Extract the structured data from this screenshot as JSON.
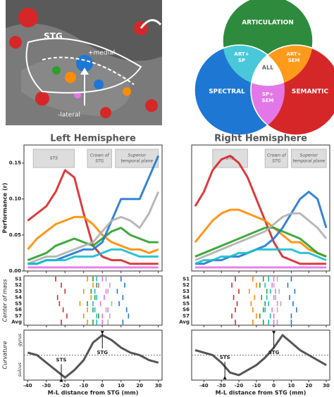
{
  "brain": {
    "stg": "STG",
    "medial": "+medial",
    "lateral": "-lateral"
  },
  "venn": {
    "articulation": "ARTICULATION",
    "spectral": "SPECTRAL",
    "semantic": "SEMANTIC",
    "art_sp": [
      "ART+",
      "SP"
    ],
    "art_sem": [
      "ART+",
      "SEM"
    ],
    "sp_sem": [
      "SP+",
      "SEM"
    ],
    "all": "ALL"
  },
  "chart_data": [
    {
      "type": "line",
      "title": "Left Hemisphere",
      "x": [
        -40,
        -35,
        -30,
        -25,
        -20,
        -15,
        -10,
        -5,
        0,
        5,
        10,
        15,
        20,
        25,
        30
      ],
      "xlim": [
        -42,
        32
      ],
      "xticks": [
        -40,
        -30,
        -20,
        -10,
        0,
        10,
        20,
        30
      ],
      "ylim": [
        0,
        0.175
      ],
      "yticks": [
        {
          "value": 0,
          "label": "0.00"
        },
        {
          "value": 0.05,
          "label": "0.05"
        },
        {
          "value": 0.1,
          "label": "0.10"
        },
        {
          "value": 0.15,
          "label": "0.15"
        }
      ],
      "ylabel": "Performance (r)",
      "regions": [
        {
          "label": [
            "STS"
          ],
          "x": [
            -37,
            -15
          ]
        },
        {
          "label": [
            "Crown of",
            "STG"
          ],
          "x": [
            -8,
            5
          ]
        },
        {
          "label": [
            "Superior",
            "temporal plane"
          ],
          "x": [
            7,
            30
          ]
        }
      ],
      "com_rows": [
        "S1",
        "S2",
        "S3",
        "S4",
        "S5",
        "S6",
        "S7",
        "Avg"
      ],
      "com_ylabel": "Center of mass",
      "series": [
        {
          "color": "#d62728",
          "values": [
            0.07,
            0.08,
            0.09,
            0.11,
            0.14,
            0.13,
            0.08,
            0.035,
            0.02,
            0.015,
            0.015,
            0.01,
            0.01,
            0.01,
            0.01
          ],
          "com": [
            -25,
            -22,
            -20,
            -24,
            -23,
            -21,
            -19,
            -22
          ]
        },
        {
          "color": "#ff8c00",
          "values": [
            0.03,
            0.045,
            0.055,
            0.065,
            0.07,
            0.075,
            0.075,
            0.065,
            0.05,
            0.04,
            0.035,
            0.03,
            0.03,
            0.025,
            0.03
          ],
          "com": [
            -8,
            -5,
            -10,
            -6,
            -12,
            -8,
            -10,
            -8
          ]
        },
        {
          "color": "#2ca02c",
          "values": [
            0.015,
            0.02,
            0.025,
            0.035,
            0.04,
            0.045,
            0.04,
            0.035,
            0.045,
            0.055,
            0.06,
            0.05,
            0.045,
            0.04,
            0.04
          ],
          "com": [
            -5,
            -3,
            -6,
            -4,
            -8,
            -5,
            -2,
            -5
          ]
        },
        {
          "color": "#1f77d4",
          "values": [
            0.01,
            0.01,
            0.015,
            0.015,
            0.02,
            0.025,
            0.03,
            0.03,
            0.04,
            0.07,
            0.1,
            0.1,
            0.1,
            0.13,
            0.16
          ],
          "com": [
            10,
            12,
            8,
            11,
            9,
            13,
            14,
            11
          ]
        },
        {
          "color": "#b0b0b0",
          "values": [
            0.01,
            0.015,
            0.02,
            0.02,
            0.025,
            0.03,
            0.035,
            0.04,
            0.055,
            0.07,
            0.075,
            0.07,
            0.06,
            0.08,
            0.11
          ],
          "com": [
            2,
            4,
            3,
            1,
            5,
            2,
            4,
            3
          ]
        },
        {
          "color": "#17becf",
          "values": [
            0.01,
            0.01,
            0.015,
            0.015,
            0.015,
            0.02,
            0.02,
            0.02,
            0.025,
            0.03,
            0.03,
            0.025,
            0.02,
            0.02,
            0.02
          ],
          "com": [
            -3,
            -2,
            -4,
            -3,
            -5,
            -4,
            -3,
            -3
          ]
        },
        {
          "color": "#e377e8",
          "values": [
            0.005,
            0.005,
            0.005,
            0.005,
            0.005,
            0.005,
            0.005,
            0.005,
            0.005,
            0.005,
            0.005,
            0.005,
            0.005,
            0.005,
            0.005
          ],
          "com": [
            0,
            -2,
            2,
            1,
            -1,
            3,
            0,
            0
          ]
        }
      ],
      "curvature": {
        "ylabel": "Curvature",
        "top": "gyrus",
        "bottom": "sulcus",
        "ylim": [
          -1,
          1
        ],
        "values": [
          0.1,
          0.0,
          -0.3,
          -0.6,
          -0.9,
          -0.6,
          -0.2,
          0.5,
          0.8,
          0.6,
          0.3,
          0.1,
          0.0,
          -0.2,
          -0.3
        ],
        "annotations": [
          {
            "text": "STS",
            "x": -22,
            "y": -0.9
          },
          {
            "text": "STG",
            "x": 0,
            "y": 0.8
          }
        ]
      },
      "xlabel": "M-L distance from STG (mm)"
    },
    {
      "type": "line",
      "title": "Right Hemisphere",
      "x": [
        -45,
        -40,
        -35,
        -30,
        -25,
        -20,
        -15,
        -10,
        -5,
        0,
        5,
        10,
        15,
        20,
        25,
        30
      ],
      "xlim": [
        -47,
        32
      ],
      "xticks": [
        -40,
        -30,
        -20,
        -10,
        0,
        10,
        20,
        30
      ],
      "ylim": [
        0,
        0.175
      ],
      "regions": [
        {
          "label": [
            "STS"
          ],
          "x": [
            -35,
            -15
          ]
        },
        {
          "label": [
            "Crown of",
            "STG"
          ],
          "x": [
            -5,
            8
          ]
        },
        {
          "label": [
            "Superior",
            "temporal plane"
          ],
          "x": [
            10,
            30
          ]
        }
      ],
      "com_rows": [
        "S1",
        "S2",
        "S3",
        "S4",
        "S5",
        "S6",
        "S7",
        "Avg"
      ],
      "series": [
        {
          "color": "#d62728",
          "values": [
            0.09,
            0.11,
            0.14,
            0.155,
            0.16,
            0.15,
            0.13,
            0.1,
            0.07,
            0.04,
            0.02,
            0.015,
            0.01,
            0.01,
            0.01,
            0.01
          ],
          "com": [
            -22,
            -24,
            -20,
            -23,
            -21,
            -22,
            -24,
            -22
          ]
        },
        {
          "color": "#ff8c00",
          "values": [
            0.04,
            0.055,
            0.07,
            0.08,
            0.085,
            0.085,
            0.08,
            0.075,
            0.07,
            0.06,
            0.05,
            0.04,
            0.04,
            0.03,
            0.025,
            0.02
          ],
          "com": [
            -12,
            -10,
            -14,
            -11,
            -13,
            -12,
            -10,
            -12
          ]
        },
        {
          "color": "#2ca02c",
          "values": [
            0.02,
            0.025,
            0.03,
            0.035,
            0.04,
            0.045,
            0.05,
            0.055,
            0.06,
            0.06,
            0.055,
            0.05,
            0.045,
            0.035,
            0.025,
            0.02
          ],
          "com": [
            -6,
            -8,
            -4,
            -7,
            -5,
            -6,
            -8,
            -6
          ]
        },
        {
          "color": "#1f77d4",
          "values": [
            0.01,
            0.01,
            0.015,
            0.015,
            0.02,
            0.02,
            0.025,
            0.03,
            0.035,
            0.045,
            0.06,
            0.08,
            0.1,
            0.11,
            0.1,
            0.06
          ],
          "com": [
            10,
            8,
            12,
            9,
            11,
            13,
            10,
            10
          ]
        },
        {
          "color": "#b0b0b0",
          "values": [
            0.015,
            0.02,
            0.025,
            0.03,
            0.035,
            0.04,
            0.045,
            0.05,
            0.055,
            0.065,
            0.075,
            0.08,
            0.08,
            0.07,
            0.06,
            0.045
          ],
          "com": [
            2,
            0,
            3,
            1,
            4,
            2,
            0,
            2
          ]
        },
        {
          "color": "#17becf",
          "values": [
            0.01,
            0.015,
            0.015,
            0.02,
            0.02,
            0.025,
            0.025,
            0.03,
            0.03,
            0.03,
            0.03,
            0.03,
            0.025,
            0.025,
            0.02,
            0.015
          ],
          "com": [
            -3,
            -5,
            -2,
            -4,
            -3,
            -5,
            -2,
            -3
          ]
        },
        {
          "color": "#e377e8",
          "values": [
            0.005,
            0.005,
            0.005,
            0.005,
            0.005,
            0.005,
            0.005,
            0.005,
            0.005,
            0.005,
            0.005,
            0.005,
            0.005,
            0.005,
            0.005,
            0.005
          ],
          "com": [
            0,
            -1,
            1,
            0,
            2,
            -1,
            0,
            0
          ]
        }
      ],
      "curvature": {
        "ylim": [
          -1,
          1
        ],
        "values": [
          0.2,
          0.1,
          0.0,
          -0.3,
          -0.7,
          -0.8,
          -0.6,
          -0.4,
          -0.1,
          0.3,
          0.8,
          0.5,
          0.2,
          0.0,
          -0.2,
          -0.4
        ],
        "annotations": [
          {
            "text": "STS",
            "x": -28,
            "y": -0.8
          },
          {
            "text": "STG",
            "x": 0,
            "y": 0.8
          }
        ]
      },
      "xlabel": "M-L distance from STG (mm)"
    }
  ]
}
